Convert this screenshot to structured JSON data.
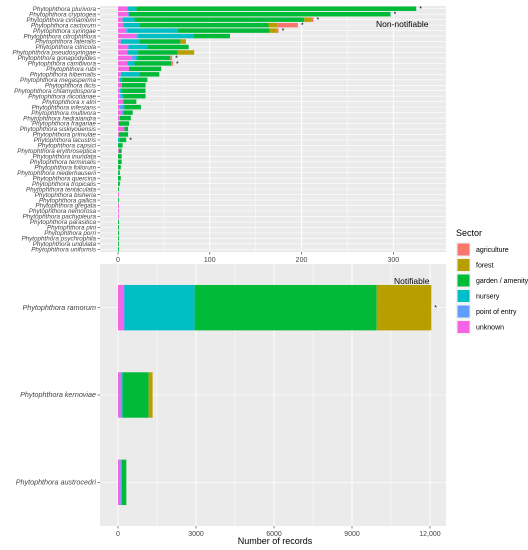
{
  "chart_data": {
    "type": "bar",
    "orientation": "horizontal-stacked",
    "xlabel": "Number of records",
    "legend": {
      "title": "Sector",
      "placement": "right",
      "entries": [
        {
          "name": "agriculture",
          "color": "#F8766D"
        },
        {
          "name": "forest",
          "color": "#B79F00"
        },
        {
          "name": "garden / amenity",
          "color": "#00BA38"
        },
        {
          "name": "nursery",
          "color": "#00BFC4"
        },
        {
          "name": "point of entry",
          "color": "#619CFF"
        },
        {
          "name": "unknown",
          "color": "#F564E3"
        }
      ]
    },
    "panels": [
      {
        "label": "Non-notifiable",
        "xlim": [
          0,
          340
        ],
        "xticks": [
          0,
          100,
          200,
          300
        ],
        "xtick_labels": [
          "0",
          "100",
          "200",
          "300"
        ],
        "categories": [
          "Phytophthora uniformis",
          "Phytophthora undulata",
          "Phytophthora psychrophila",
          "Phytophthora porri",
          "Phytophthora pini",
          "Phytophthora parasitica",
          "Phytophthora pachypleura",
          "Phytophthora nemorosa",
          "Phytophthora gregata",
          "Phytophthora gallica",
          "Phytophthora bisheria",
          "Phytophthora tentaculata",
          "Phytophthora tropicalis",
          "Phytophthora quercina",
          "Phytophthora niederhauserii",
          "Phytophthora foliorum",
          "Phytophthora terminalis",
          "Phytophthora inundata",
          "Phytophthora erythroseptica",
          "Phytophthora capsici",
          "Phytophthora lacustris",
          "Phytophthora primulae",
          "Phytophthora siskiyouensis",
          "Phytophthora fragariae",
          "Phytophthora hedraiandra",
          "Phytophthora multivora",
          "Phytophthora infestans",
          "Phytophthora x alni",
          "Phytophthora nicotianae",
          "Phytophthora chlamydospora",
          "Phytophthora ilicis",
          "Phytophthora megasperma",
          "Phytophthora hibernalis",
          "Phytophthora rubi",
          "Phytophthora cambivora",
          "Phytophthora gonapodyides",
          "Phytophthora pseudosyringae",
          "Phytophthora citricola",
          "Phytophthora lateralis",
          "Phytophthora citrophthora",
          "Phytophthora syringae",
          "Phytophthora cactorum",
          "Phytophthora cinnamomi",
          "Phytophthora cryptogea",
          "Phytophthora plurivora"
        ],
        "series": [
          {
            "name": "agriculture",
            "values": [
              0,
              0,
              0,
              0,
              0,
              0,
              0,
              0,
              0,
              0,
              0,
              0,
              0,
              0,
              0,
              0,
              0,
              0,
              0,
              0,
              0,
              0,
              0,
              0,
              0,
              0,
              0,
              0,
              0,
              0,
              0,
              0,
              0,
              0,
              2,
              2,
              0,
              0,
              0,
              0,
              2,
              22,
              2,
              0,
              0
            ]
          },
          {
            "name": "forest",
            "values": [
              0,
              0,
              0,
              0,
              0,
              0,
              0,
              0,
              0,
              0,
              0,
              0,
              0,
              0,
              0,
              0,
              0,
              0,
              0,
              0,
              0,
              0,
              0,
              0,
              0,
              0,
              0,
              0,
              0,
              0,
              0,
              0,
              0,
              0,
              0,
              0,
              18,
              0,
              6,
              0,
              8,
              10,
              8,
              0,
              0
            ]
          },
          {
            "name": "garden / amenity",
            "values": [
              1,
              1,
              1,
              1,
              1,
              1,
              0,
              0,
              0,
              1,
              0,
              1,
              2,
              3,
              2,
              3,
              4,
              4,
              3,
              5,
              7,
              10,
              4,
              11,
              12,
              10,
              18,
              14,
              24,
              26,
              26,
              28,
              22,
              35,
              40,
              36,
              43,
              45,
              45,
              40,
              100,
              140,
              185,
              285,
              305
            ]
          },
          {
            "name": "nursery",
            "values": [
              0,
              0,
              0,
              0,
              0,
              0,
              0,
              0,
              0,
              0,
              0,
              0,
              0,
              0,
              0,
              0,
              0,
              0,
              0,
              0,
              2,
              0,
              0,
              0,
              0,
              0,
              2,
              0,
              2,
              2,
              0,
              2,
              20,
              0,
              8,
              2,
              12,
              20,
              20,
              60,
              55,
              18,
              13,
              0,
              10
            ]
          },
          {
            "name": "point of entry",
            "values": [
              0,
              0,
              0,
              0,
              0,
              0,
              0,
              0,
              0,
              0,
              0,
              0,
              0,
              0,
              0,
              0,
              0,
              0,
              0,
              0,
              0,
              0,
              0,
              0,
              0,
              2,
              3,
              0,
              2,
              0,
              0,
              0,
              0,
              0,
              0,
              4,
              0,
              2,
              0,
              2,
              2,
              0,
              0,
              2,
              0
            ]
          },
          {
            "name": "unknown",
            "values": [
              0,
              0,
              0,
              0,
              0,
              0,
              1,
              1,
              1,
              0,
              1,
              0,
              0,
              0,
              0,
              0,
              0,
              0,
              1,
              0,
              0,
              1,
              7,
              1,
              2,
              4,
              2,
              6,
              2,
              2,
              4,
              2,
              3,
              12,
              10,
              15,
              10,
              10,
              3,
              20,
              8,
              6,
              5,
              10,
              10
            ]
          }
        ],
        "stars": [
          "Phytophthora lacustris",
          "Phytophthora cambivora",
          "Phytophthora gonapodyides",
          "Phytophthora syringae",
          "Phytophthora cactorum",
          "Phytophthora cinnamomi",
          "Phytophthora cryptogea",
          "Phytophthora plurivora"
        ]
      },
      {
        "label": "Notifiable",
        "xlim": [
          0,
          12000
        ],
        "xticks": [
          0,
          3000,
          6000,
          9000,
          12000
        ],
        "xtick_labels": [
          "0",
          "3000",
          "6000",
          "9000",
          "12,000"
        ],
        "categories": [
          "Phytophthora austrocedri",
          "Phytophthora kernoviae",
          "Phytophthora ramorum"
        ],
        "series": [
          {
            "name": "agriculture",
            "values": [
              0,
              0,
              0
            ]
          },
          {
            "name": "forest",
            "values": [
              0,
              150,
              2100
            ]
          },
          {
            "name": "garden / amenity",
            "values": [
              180,
              1000,
              7000
            ]
          },
          {
            "name": "nursery",
            "values": [
              20,
              50,
              2700
            ]
          },
          {
            "name": "point of entry",
            "values": [
              30,
              30,
              50
            ]
          },
          {
            "name": "unknown",
            "values": [
              90,
              100,
              200
            ]
          }
        ],
        "stars": [
          "Phytophthora ramorum"
        ]
      }
    ]
  }
}
